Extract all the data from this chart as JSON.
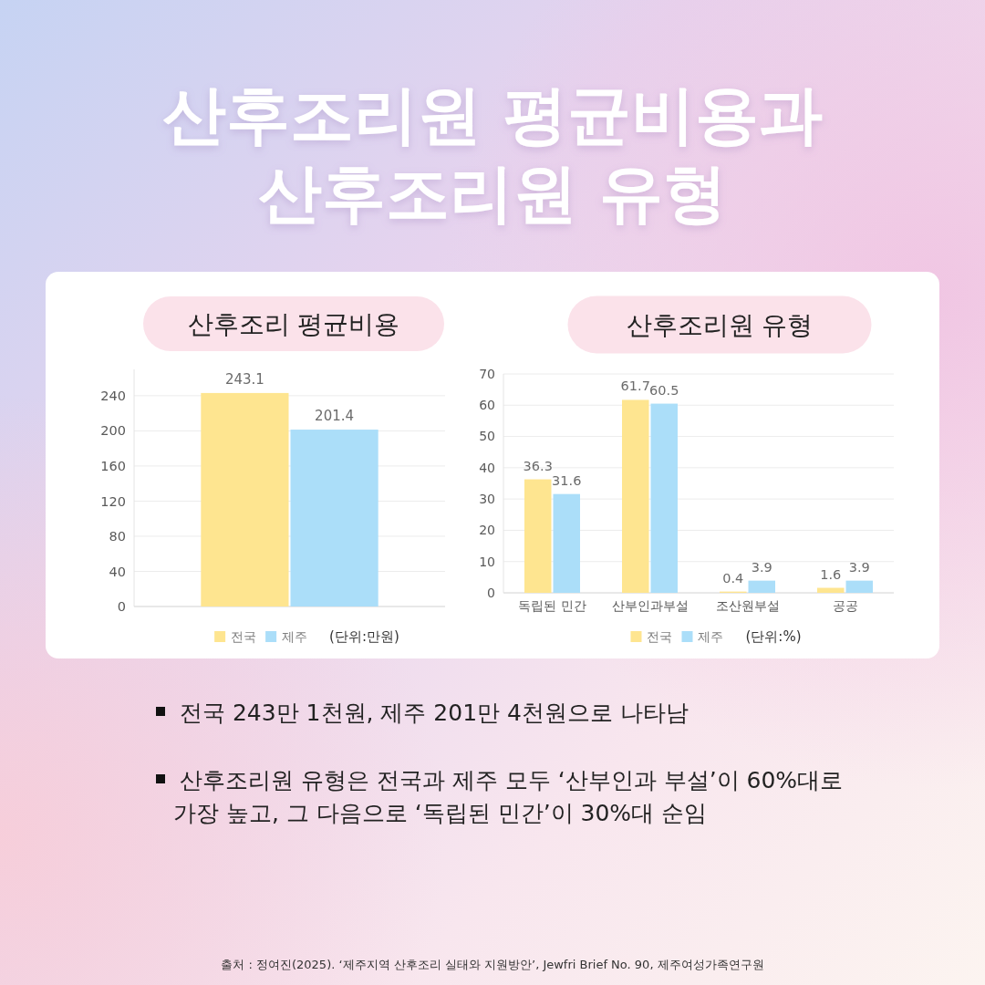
{
  "chart_data": [
    {
      "type": "other",
      "title": "산후조리원 평균비용과 산후조리원 유형"
    },
    {
      "type": "bar",
      "title": "산후조리 평균비용",
      "categories": [
        null
      ],
      "series": [
        {
          "name": "전국",
          "color": "#fee590",
          "values": [
            243.1
          ]
        },
        {
          "name": "제주",
          "color": "#abdef9",
          "values": [
            201.4
          ]
        }
      ],
      "ylim": [
        0,
        270
      ],
      "yticks": [
        0,
        40,
        80,
        120,
        160,
        200,
        240
      ],
      "grid": "y",
      "legend": "bottom",
      "data_labels": true,
      "annotations": [
        "(단위:만원)"
      ]
    },
    {
      "type": "bar",
      "title": "산후조리원 유형",
      "categories": [
        "독립된 민간",
        "산부인과부설",
        "조산원부설",
        "공공"
      ],
      "series": [
        {
          "name": "전국",
          "color": "#fee590",
          "values": [
            36.3,
            61.7,
            0.4,
            1.6
          ]
        },
        {
          "name": "제주",
          "color": "#abdef9",
          "values": [
            31.6,
            60.5,
            3.9,
            3.9
          ]
        }
      ],
      "ylim": [
        0,
        70
      ],
      "yticks": [
        0,
        10,
        20,
        30,
        40,
        50,
        60,
        70
      ],
      "grid": "y",
      "legend": "bottom",
      "data_labels": true,
      "annotations": [
        "(단위:%)"
      ]
    },
    {
      "type": "other",
      "annotations": [
        "전국 243만 1천원, 제주 201만 4천원으로 나타남",
        "산후조리원 유형은 전국과 제주 모두 ‘산부인과 부설’이 60%대로 가장 높고, 그 다음으로 ‘독립된 민간’이 30%대 순임",
        "출처 : 정여진(2025). ‘제주지역 산후조리 실태와 지원방안’, Jewfri Brief No. 90, 제주여성가족연구원"
      ]
    }
  ]
}
